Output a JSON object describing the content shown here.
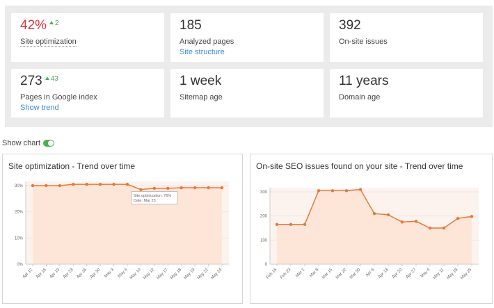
{
  "stats": {
    "site_optimization": {
      "value": "42%",
      "delta": "2",
      "label": "Site optimization"
    },
    "analyzed_pages": {
      "value": "185",
      "label": "Analyzed pages",
      "link": "Site structure"
    },
    "onsite_issues": {
      "value": "392",
      "label": "On-site issues"
    },
    "pages_in_google": {
      "value": "273",
      "delta": "43",
      "label": "Pages in Google index",
      "link": "Show trend"
    },
    "sitemap_age": {
      "value": "1 week",
      "label": "Sitemap age"
    },
    "domain_age": {
      "value": "11 years",
      "label": "Domain age"
    }
  },
  "show_chart_label": "Show chart",
  "colors": {
    "accent_line": "#e8773a",
    "area_fill": "#fde6d8",
    "positive": "#4caf50",
    "negative": "#d9363e",
    "link": "#3d8ad4"
  },
  "chart_data": [
    {
      "type": "area",
      "title": "Site optimization - Trend over time",
      "categories": [
        "Apr 12",
        "Apr 16",
        "Apr 19",
        "Apr 23",
        "Apr 26",
        "Apr 30",
        "May 3",
        "May 4",
        "May 10",
        "May 12",
        "May 17",
        "May 18",
        "May 19",
        "May 21",
        "May 24"
      ],
      "values": [
        30,
        30,
        30,
        30.5,
        30.5,
        30.5,
        30.5,
        30.5,
        28.5,
        29,
        29,
        29.2,
        29.2,
        29.2,
        29.2
      ],
      "ylim": [
        0,
        30
      ],
      "yticks": [
        "0%",
        "10%",
        "20%",
        "30%"
      ],
      "tooltip": {
        "line1": "Site optimization: 76%",
        "line2": "Date: Mar 23"
      },
      "xlabel": "",
      "ylabel": ""
    },
    {
      "type": "area",
      "title": "On-site SEO issues found on your site - Trend over time",
      "categories": [
        "Feb 16",
        "Feb 23",
        "Mar 1",
        "Mar 8",
        "Mar 15",
        "Mar 22",
        "Mar 30",
        "Apr 6",
        "Apr 13",
        "Apr 20",
        "Apr 27",
        "May 4",
        "May 11",
        "May 18",
        "May 25"
      ],
      "values": [
        165,
        165,
        165,
        305,
        305,
        305,
        310,
        210,
        205,
        175,
        178,
        150,
        150,
        190,
        198
      ],
      "ylim": [
        0,
        300
      ],
      "yticks": [
        "0",
        "100",
        "200",
        "300"
      ],
      "xlabel": "",
      "ylabel": ""
    }
  ]
}
